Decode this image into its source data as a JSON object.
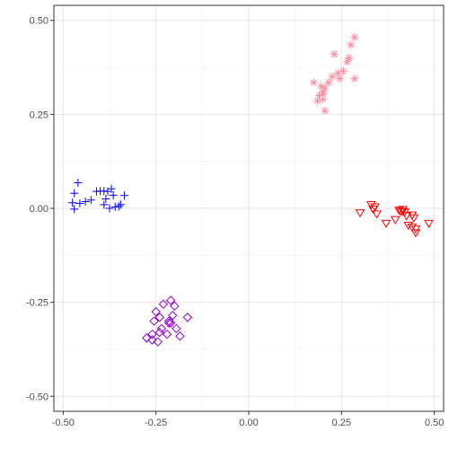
{
  "chart_data": {
    "type": "scatter",
    "title": "",
    "xlabel": "",
    "ylabel": "",
    "xlim": [
      -0.525,
      0.525
    ],
    "ylim": [
      -0.54,
      0.54
    ],
    "x_ticks": [
      -0.5,
      -0.25,
      0.0,
      0.25,
      0.5
    ],
    "x_tick_labels": [
      "-0.50",
      "-0.25",
      "0.00",
      "0.25",
      "0.50"
    ],
    "y_ticks": [
      -0.5,
      -0.25,
      0.0,
      0.25,
      0.5
    ],
    "y_tick_labels": [
      "-0.50",
      "-0.25",
      "0.00",
      "0.25",
      "0.50"
    ],
    "grid": true,
    "legend": "none",
    "series": [
      {
        "marker": "plus",
        "color": "#0000ff",
        "x": [
          -0.46,
          -0.47,
          -0.475,
          -0.455,
          -0.44,
          -0.425,
          -0.41,
          -0.4,
          -0.39,
          -0.385,
          -0.38,
          -0.375,
          -0.37,
          -0.365,
          -0.36,
          -0.35,
          -0.345,
          -0.335,
          -0.47,
          -0.39
        ],
        "y": [
          0.068,
          0.04,
          0.015,
          0.013,
          0.018,
          0.022,
          0.045,
          0.046,
          0.01,
          0.025,
          0.045,
          0.0,
          0.052,
          0.035,
          0.004,
          0.005,
          0.01,
          0.034,
          -0.002,
          0.046
        ]
      },
      {
        "marker": "asterisk",
        "color": "#ff8fa3",
        "x": [
          0.285,
          0.275,
          0.265,
          0.27,
          0.255,
          0.245,
          0.24,
          0.23,
          0.225,
          0.215,
          0.205,
          0.2,
          0.2,
          0.195,
          0.19,
          0.185,
          0.175,
          0.205,
          0.2,
          0.285
        ],
        "y": [
          0.455,
          0.435,
          0.39,
          0.4,
          0.365,
          0.345,
          0.36,
          0.41,
          0.35,
          0.335,
          0.32,
          0.31,
          0.29,
          0.325,
          0.3,
          0.285,
          0.335,
          0.26,
          0.305,
          0.345
        ]
      },
      {
        "marker": "triangle-down",
        "color": "#ff0000",
        "x": [
          0.3,
          0.33,
          0.335,
          0.34,
          0.345,
          0.37,
          0.395,
          0.405,
          0.41,
          0.415,
          0.42,
          0.425,
          0.43,
          0.44,
          0.445,
          0.45,
          0.45,
          0.485,
          0.415,
          0.44
        ],
        "y": [
          -0.012,
          0.01,
          -0.002,
          0.004,
          -0.015,
          -0.04,
          -0.03,
          -0.005,
          -0.008,
          -0.003,
          -0.01,
          -0.02,
          -0.045,
          -0.05,
          -0.025,
          -0.055,
          -0.065,
          -0.04,
          -0.008,
          -0.018
        ]
      },
      {
        "marker": "diamond",
        "color": "#9400d3",
        "x": [
          -0.275,
          -0.26,
          -0.255,
          -0.25,
          -0.245,
          -0.24,
          -0.235,
          -0.23,
          -0.22,
          -0.215,
          -0.21,
          -0.205,
          -0.2,
          -0.195,
          -0.185,
          -0.165,
          -0.24,
          -0.215,
          -0.21,
          -0.26
        ],
        "y": [
          -0.345,
          -0.335,
          -0.3,
          -0.275,
          -0.355,
          -0.29,
          -0.32,
          -0.255,
          -0.335,
          -0.305,
          -0.245,
          -0.285,
          -0.26,
          -0.32,
          -0.34,
          -0.29,
          -0.33,
          -0.3,
          -0.305,
          -0.35
        ]
      }
    ]
  }
}
